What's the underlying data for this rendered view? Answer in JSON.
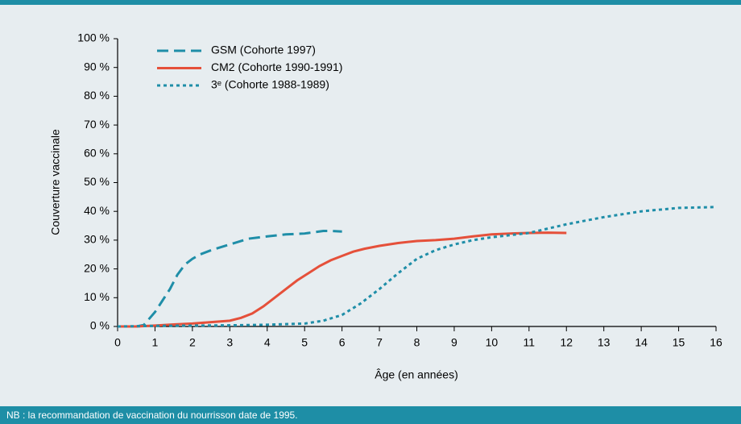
{
  "chart_data": {
    "type": "line",
    "x_label": "Âge (en années)",
    "y_label": "Couverture vaccinale",
    "note": "NB : la recommandation de vaccination du nourrisson date de 1995.",
    "xlim": [
      0,
      16
    ],
    "xticks": [
      0,
      1,
      2,
      3,
      4,
      5,
      6,
      7,
      8,
      9,
      10,
      11,
      12,
      13,
      14,
      15,
      16
    ],
    "ylim": [
      0,
      100
    ],
    "yticks": [
      {
        "value": 0,
        "label": "0 %"
      },
      {
        "value": 10,
        "label": "10 %"
      },
      {
        "value": 20,
        "label": "20 %"
      },
      {
        "value": 30,
        "label": "30 %"
      },
      {
        "value": 40,
        "label": "40 %"
      },
      {
        "value": 50,
        "label": "50 %"
      },
      {
        "value": 60,
        "label": "60 %"
      },
      {
        "value": 70,
        "label": "70 %"
      },
      {
        "value": 80,
        "label": "80 %"
      },
      {
        "value": 90,
        "label": "90 %"
      },
      {
        "value": 100,
        "label": "100 %"
      }
    ],
    "grid": false,
    "legend": "upper left",
    "series": [
      {
        "name": "GSM (Cohorte 1997)",
        "color": "#1f8ea8",
        "dash": "dashed",
        "x": [
          0,
          0.5,
          0.7,
          0.8,
          1,
          1.2,
          1.4,
          1.6,
          1.8,
          2,
          2.2,
          2.5,
          3,
          3.5,
          4,
          4.5,
          5,
          5.5,
          5.7,
          6
        ],
        "values": [
          0,
          0,
          0.5,
          2,
          5,
          9,
          13,
          18,
          21.5,
          23.5,
          25,
          26.5,
          28.5,
          30.5,
          31.3,
          32,
          32.3,
          33.2,
          33.2,
          33
        ]
      },
      {
        "name": "CM2 (Cohorte 1990-1991)",
        "color": "#e5503a",
        "dash": "solid",
        "x": [
          0,
          0.5,
          1,
          1.5,
          2,
          2.5,
          3,
          3.3,
          3.6,
          3.9,
          4.2,
          4.5,
          4.8,
          5.1,
          5.4,
          5.7,
          6,
          6.3,
          6.6,
          7,
          7.5,
          8,
          8.5,
          9,
          9.5,
          10,
          10.5,
          11,
          11.5,
          12
        ],
        "values": [
          0,
          0,
          0.3,
          0.7,
          1,
          1.5,
          2,
          3,
          4.5,
          7,
          10,
          13,
          16,
          18.5,
          21,
          23,
          24.5,
          26,
          27,
          28,
          29,
          29.7,
          30,
          30.5,
          31.3,
          32,
          32.3,
          32.5,
          32.6,
          32.5
        ]
      },
      {
        "name": "3ᵉ (Cohorte 1988-1989)",
        "color": "#1f8ea8",
        "dash": "dotted",
        "x": [
          0,
          1,
          2,
          3,
          4,
          5,
          5.5,
          6,
          6.5,
          7,
          7.5,
          8,
          8.5,
          9,
          9.5,
          10,
          11,
          12,
          13,
          14,
          15,
          16
        ],
        "values": [
          0,
          0.2,
          0.3,
          0.4,
          0.6,
          1,
          2,
          4,
          8,
          13,
          18.5,
          23.5,
          26.5,
          28.5,
          30,
          31,
          32.5,
          35.5,
          38,
          40,
          41.2,
          41.5
        ]
      }
    ]
  }
}
